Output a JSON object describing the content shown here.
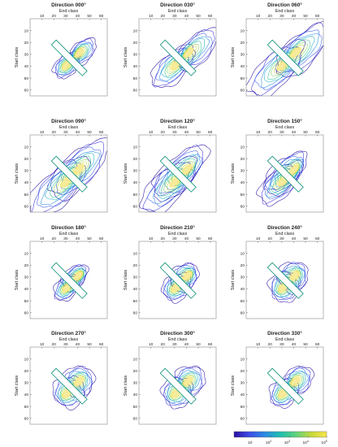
{
  "chart_data": {
    "type": "contour",
    "layout": {
      "rows": 4,
      "cols": 3
    },
    "xlabel": "End class",
    "ylabel": "Start class",
    "xlim": [
      0,
      65
    ],
    "ylim": [
      65,
      0
    ],
    "x_ticks": [
      "10",
      "20",
      "30",
      "40",
      "50",
      "60"
    ],
    "y_ticks": [
      "10",
      "20",
      "30",
      "40",
      "50",
      "60"
    ],
    "panels": [
      {
        "title": "Direction 000°",
        "direction": 0
      },
      {
        "title": "Direction 030°",
        "direction": 30
      },
      {
        "title": "Direction 060°",
        "direction": 60
      },
      {
        "title": "Direction 090°",
        "direction": 90
      },
      {
        "title": "Direction 120°",
        "direction": 120
      },
      {
        "title": "Direction 150°",
        "direction": 150
      },
      {
        "title": "Direction 180°",
        "direction": 180
      },
      {
        "title": "Direction 210°",
        "direction": 210
      },
      {
        "title": "Direction 240°",
        "direction": 240
      },
      {
        "title": "Direction 270°",
        "direction": 270
      },
      {
        "title": "Direction 300°",
        "direction": 300
      },
      {
        "title": "Direction 330°",
        "direction": 330
      }
    ],
    "colorbar": {
      "scale": "log",
      "range": [
        1,
        100000
      ],
      "ticks": [
        {
          "value": 10,
          "base": "10",
          "exp": ""
        },
        {
          "value": 100,
          "base": "10",
          "exp": "2"
        },
        {
          "value": 1000,
          "base": "10",
          "exp": "3"
        },
        {
          "value": 10000,
          "base": "10",
          "exp": "4"
        },
        {
          "value": 100000,
          "base": "10",
          "exp": "5"
        }
      ],
      "colors": [
        "#2a0fa0",
        "#3c4ee8",
        "#2a8de0",
        "#1dbdb0",
        "#5fd27a",
        "#c8d83a",
        "#f6e64c"
      ]
    }
  }
}
